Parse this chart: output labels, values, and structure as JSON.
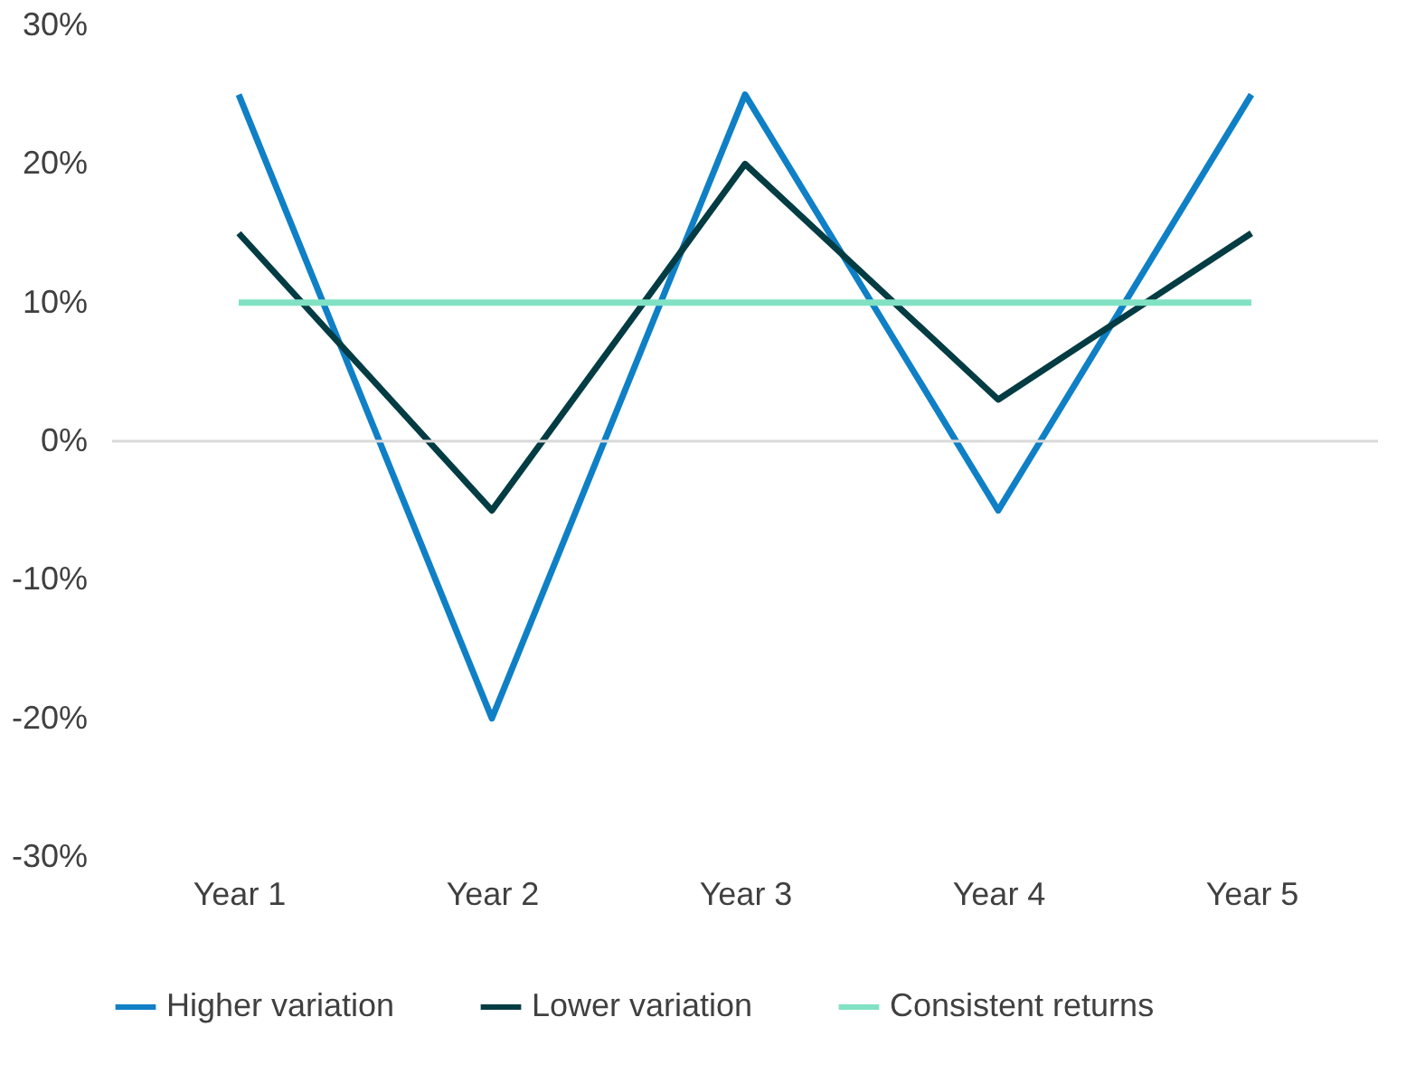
{
  "chart_data": {
    "type": "line",
    "categories": [
      "Year 1",
      "Year 2",
      "Year 3",
      "Year 4",
      "Year 5"
    ],
    "series": [
      {
        "name": "Higher variation",
        "color": "#0f80c6",
        "values": [
          25,
          -20,
          25,
          -5,
          25
        ]
      },
      {
        "name": "Lower variation",
        "color": "#033c43",
        "values": [
          15,
          -5,
          20,
          3,
          15
        ]
      },
      {
        "name": "Consistent returns",
        "color": "#80e2c3",
        "values": [
          10,
          10,
          10,
          10,
          10
        ]
      }
    ],
    "ylim": [
      -30,
      30
    ],
    "yticks": [
      {
        "value": -30,
        "label": "-30%"
      },
      {
        "value": -20,
        "label": "-20%"
      },
      {
        "value": -10,
        "label": "-10%"
      },
      {
        "value": 0,
        "label": "0%"
      },
      {
        "value": 10,
        "label": "10%"
      },
      {
        "value": 20,
        "label": "20%"
      },
      {
        "value": 30,
        "label": "30%"
      }
    ],
    "ref_lines": [
      {
        "axis": "y",
        "value": 0,
        "color": "#d9d9d9"
      }
    ],
    "legend": "bottom",
    "marker": "none",
    "line_style": "solid"
  }
}
